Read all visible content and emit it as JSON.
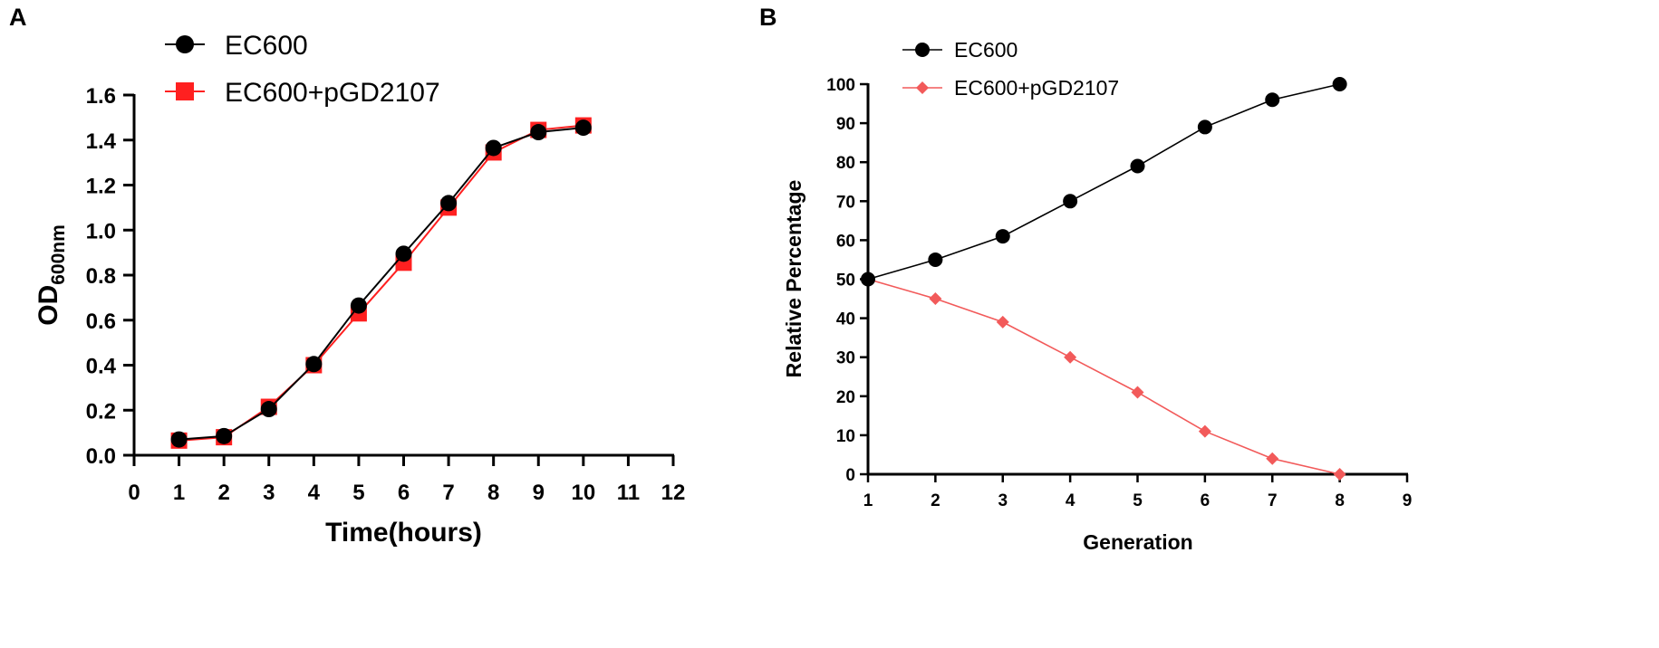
{
  "chart_data": [
    {
      "panel": "A",
      "type": "line",
      "xlabel": "Time(hours)",
      "ylabel_main": "OD",
      "ylabel_sub": "600nm",
      "xlim": [
        0,
        12
      ],
      "ylim": [
        0.0,
        1.6
      ],
      "xticks": [
        "0",
        "1",
        "2",
        "3",
        "4",
        "5",
        "6",
        "7",
        "8",
        "9",
        "10",
        "11",
        "12"
      ],
      "yticks": [
        "0.0",
        "0.2",
        "0.4",
        "0.6",
        "0.8",
        "1.0",
        "1.2",
        "1.4",
        "1.6"
      ],
      "legend_position": "top-left",
      "series": [
        {
          "name": "EC600",
          "marker": "circle",
          "color": "#000000",
          "x": [
            1,
            2,
            3,
            4,
            5,
            6,
            7,
            8,
            9,
            10
          ],
          "values": [
            0.07,
            0.085,
            0.205,
            0.405,
            0.665,
            0.895,
            1.12,
            1.365,
            1.435,
            1.455
          ]
        },
        {
          "name": "EC600+pGD2107",
          "marker": "square",
          "color": "#ff2020",
          "x": [
            1,
            2,
            3,
            4,
            5,
            6,
            7,
            8,
            9,
            10
          ],
          "values": [
            0.065,
            0.08,
            0.215,
            0.4,
            0.63,
            0.855,
            1.1,
            1.345,
            1.445,
            1.465
          ]
        }
      ]
    },
    {
      "panel": "B",
      "type": "line",
      "xlabel": "Generation",
      "ylabel": "Relative Percentage",
      "xlim": [
        1,
        9
      ],
      "ylim": [
        0,
        100
      ],
      "xticks": [
        "1",
        "2",
        "3",
        "4",
        "5",
        "6",
        "7",
        "8",
        "9"
      ],
      "yticks": [
        "0",
        "10",
        "20",
        "30",
        "40",
        "50",
        "60",
        "70",
        "80",
        "90",
        "100"
      ],
      "legend_position": "top-left",
      "series": [
        {
          "name": "EC600",
          "marker": "circle",
          "color": "#000000",
          "x": [
            1,
            2,
            3,
            4,
            5,
            6,
            7,
            8
          ],
          "values": [
            50,
            55,
            61,
            70,
            79,
            89,
            96,
            100
          ]
        },
        {
          "name": "EC600+pGD2107",
          "marker": "diamond",
          "color": "#f25a5a",
          "x": [
            1,
            2,
            3,
            4,
            5,
            6,
            7,
            8
          ],
          "values": [
            50,
            45,
            39,
            30,
            21,
            11,
            4,
            0
          ]
        }
      ]
    }
  ]
}
